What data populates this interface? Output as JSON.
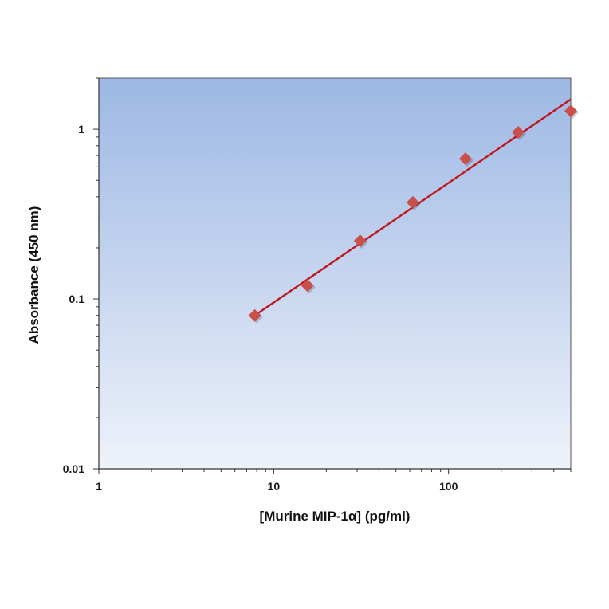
{
  "chart_data": {
    "type": "scatter",
    "title": "",
    "xlabel": "[Murine MIP-1α] (pg/ml)",
    "ylabel": "Absorbance (450 nm)",
    "xscale": "log",
    "yscale": "log",
    "xlim": [
      1,
      500
    ],
    "ylim": [
      0.01,
      2
    ],
    "x_ticks": [
      {
        "value": 1,
        "label": "1"
      },
      {
        "value": 10,
        "label": "10"
      },
      {
        "value": 100,
        "label": "100"
      }
    ],
    "y_ticks": [
      {
        "value": 0.01,
        "label": "0.01"
      },
      {
        "value": 0.1,
        "label": "0.1"
      },
      {
        "value": 1,
        "label": "1"
      }
    ],
    "grid": false,
    "legend": "none",
    "series": [
      {
        "marker": "diamond",
        "color": "#c8504a",
        "x": [
          7.8,
          15.6,
          31.2,
          62.5,
          125,
          250,
          500
        ],
        "y": [
          0.08,
          0.12,
          0.22,
          0.37,
          0.67,
          0.96,
          1.28
        ]
      }
    ],
    "fit_line": {
      "color": "#c0171e",
      "x": [
        7.8,
        500
      ],
      "y": [
        0.08,
        1.5
      ]
    },
    "background_gradient": [
      "#9db8e4",
      "#eef2fa"
    ]
  }
}
